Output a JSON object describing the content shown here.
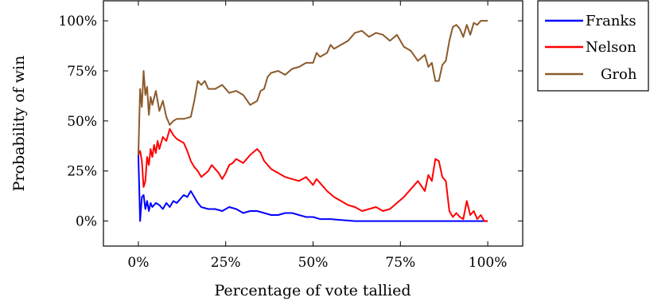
{
  "chart_data": {
    "type": "line",
    "xlabel": "Percentage of vote tallied",
    "ylabel": "Probability of win",
    "xlim": [
      -10,
      110
    ],
    "ylim": [
      -12.5,
      110
    ],
    "x_ticks": [
      0,
      25,
      50,
      75,
      100
    ],
    "x_tick_labels": [
      "0%",
      "25%",
      "50%",
      "75%",
      "100%"
    ],
    "y_ticks": [
      0,
      25,
      50,
      75,
      100
    ],
    "y_tick_labels": [
      "0%",
      "25%",
      "50%",
      "75%",
      "100%"
    ],
    "grid": false,
    "legend_position": "outside-top-right",
    "series": [
      {
        "name": "Franks",
        "color": "#0000ff",
        "points": [
          [
            0,
            33
          ],
          [
            0.5,
            0
          ],
          [
            1,
            12
          ],
          [
            1.5,
            13
          ],
          [
            2,
            6
          ],
          [
            2.5,
            10
          ],
          [
            3,
            5
          ],
          [
            3.5,
            9
          ],
          [
            4,
            7
          ],
          [
            5,
            9
          ],
          [
            6,
            8
          ],
          [
            7,
            6
          ],
          [
            8,
            9
          ],
          [
            9,
            7
          ],
          [
            10,
            10
          ],
          [
            11,
            9
          ],
          [
            12,
            11
          ],
          [
            13,
            13
          ],
          [
            14,
            12
          ],
          [
            15,
            15
          ],
          [
            16,
            12
          ],
          [
            17,
            9
          ],
          [
            18,
            7
          ],
          [
            20,
            6
          ],
          [
            22,
            6
          ],
          [
            24,
            5
          ],
          [
            26,
            7
          ],
          [
            28,
            6
          ],
          [
            30,
            4
          ],
          [
            32,
            5
          ],
          [
            34,
            5
          ],
          [
            36,
            4
          ],
          [
            38,
            3
          ],
          [
            40,
            3
          ],
          [
            42,
            4
          ],
          [
            44,
            4
          ],
          [
            46,
            3
          ],
          [
            48,
            2
          ],
          [
            50,
            2
          ],
          [
            52,
            1
          ],
          [
            55,
            1
          ],
          [
            58,
            0.5
          ],
          [
            62,
            0
          ],
          [
            70,
            0
          ],
          [
            80,
            0
          ],
          [
            90,
            0
          ],
          [
            100,
            0
          ]
        ]
      },
      {
        "name": "Nelson",
        "color": "#ff0000",
        "points": [
          [
            0,
            33
          ],
          [
            0.5,
            35
          ],
          [
            1,
            30
          ],
          [
            1.5,
            17
          ],
          [
            2,
            20
          ],
          [
            2.5,
            32
          ],
          [
            3,
            28
          ],
          [
            3.5,
            36
          ],
          [
            4,
            32
          ],
          [
            4.5,
            38
          ],
          [
            5,
            34
          ],
          [
            5.5,
            40
          ],
          [
            6,
            36
          ],
          [
            7,
            42
          ],
          [
            8,
            40
          ],
          [
            9,
            46
          ],
          [
            10,
            43
          ],
          [
            11,
            41
          ],
          [
            12,
            40
          ],
          [
            13,
            39
          ],
          [
            14,
            35
          ],
          [
            15,
            30
          ],
          [
            16,
            27
          ],
          [
            17,
            25
          ],
          [
            18,
            22
          ],
          [
            20,
            25
          ],
          [
            21,
            28
          ],
          [
            22,
            26
          ],
          [
            23,
            24
          ],
          [
            24,
            21
          ],
          [
            25,
            24
          ],
          [
            26,
            28
          ],
          [
            27,
            29
          ],
          [
            28,
            31
          ],
          [
            30,
            29
          ],
          [
            32,
            33
          ],
          [
            34,
            36
          ],
          [
            35,
            34
          ],
          [
            36,
            30
          ],
          [
            38,
            26
          ],
          [
            40,
            24
          ],
          [
            42,
            22
          ],
          [
            44,
            21
          ],
          [
            46,
            20
          ],
          [
            48,
            22
          ],
          [
            50,
            18
          ],
          [
            51,
            21
          ],
          [
            52,
            19
          ],
          [
            54,
            15
          ],
          [
            56,
            12
          ],
          [
            58,
            10
          ],
          [
            60,
            8
          ],
          [
            62,
            7
          ],
          [
            64,
            5
          ],
          [
            66,
            6
          ],
          [
            68,
            7
          ],
          [
            70,
            5
          ],
          [
            72,
            6
          ],
          [
            74,
            9
          ],
          [
            76,
            12
          ],
          [
            78,
            16
          ],
          [
            80,
            20
          ],
          [
            82,
            15
          ],
          [
            83,
            23
          ],
          [
            84,
            20
          ],
          [
            85,
            31
          ],
          [
            86,
            30
          ],
          [
            87,
            22
          ],
          [
            88,
            20
          ],
          [
            89,
            5
          ],
          [
            90,
            2
          ],
          [
            91,
            4
          ],
          [
            92,
            2
          ],
          [
            93,
            1
          ],
          [
            94,
            10
          ],
          [
            95,
            3
          ],
          [
            96,
            5
          ],
          [
            97,
            1
          ],
          [
            98,
            3
          ],
          [
            99,
            0
          ],
          [
            100,
            0
          ]
        ]
      },
      {
        "name": "Groh",
        "color": "#8b5a2b",
        "points": [
          [
            0,
            33
          ],
          [
            0.5,
            66
          ],
          [
            1,
            57
          ],
          [
            1.5,
            75
          ],
          [
            2,
            63
          ],
          [
            2.5,
            67
          ],
          [
            3,
            53
          ],
          [
            3.5,
            62
          ],
          [
            4,
            58
          ],
          [
            5,
            65
          ],
          [
            6,
            55
          ],
          [
            7,
            60
          ],
          [
            8,
            52
          ],
          [
            9,
            48
          ],
          [
            10,
            50
          ],
          [
            11,
            51
          ],
          [
            13,
            51
          ],
          [
            15,
            52
          ],
          [
            16,
            60
          ],
          [
            17,
            70
          ],
          [
            18,
            68
          ],
          [
            19,
            70
          ],
          [
            20,
            66
          ],
          [
            22,
            66
          ],
          [
            24,
            68
          ],
          [
            26,
            64
          ],
          [
            28,
            65
          ],
          [
            30,
            63
          ],
          [
            32,
            58
          ],
          [
            34,
            60
          ],
          [
            35,
            65
          ],
          [
            36,
            66
          ],
          [
            37,
            72
          ],
          [
            38,
            74
          ],
          [
            40,
            75
          ],
          [
            42,
            73
          ],
          [
            44,
            76
          ],
          [
            46,
            77
          ],
          [
            48,
            79
          ],
          [
            50,
            79
          ],
          [
            51,
            84
          ],
          [
            52,
            82
          ],
          [
            54,
            84
          ],
          [
            55,
            88
          ],
          [
            56,
            86
          ],
          [
            58,
            88
          ],
          [
            60,
            90
          ],
          [
            62,
            94
          ],
          [
            64,
            95
          ],
          [
            66,
            92
          ],
          [
            68,
            94
          ],
          [
            70,
            93
          ],
          [
            72,
            90
          ],
          [
            74,
            93
          ],
          [
            76,
            87
          ],
          [
            78,
            85
          ],
          [
            80,
            80
          ],
          [
            82,
            83
          ],
          [
            83,
            77
          ],
          [
            84,
            79
          ],
          [
            85,
            70
          ],
          [
            86,
            70
          ],
          [
            87,
            78
          ],
          [
            88,
            80
          ],
          [
            89,
            90
          ],
          [
            90,
            97
          ],
          [
            91,
            98
          ],
          [
            92,
            96
          ],
          [
            93,
            92
          ],
          [
            94,
            98
          ],
          [
            95,
            93
          ],
          [
            96,
            99
          ],
          [
            97,
            98
          ],
          [
            98,
            100
          ],
          [
            100,
            100
          ]
        ]
      }
    ]
  }
}
